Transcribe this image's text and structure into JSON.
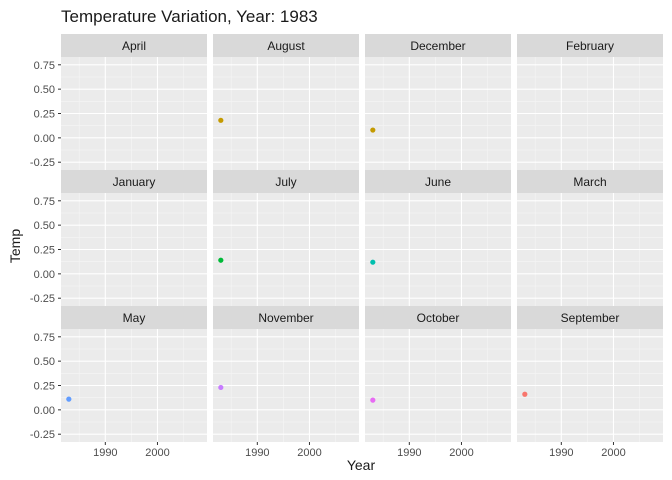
{
  "chart_data": {
    "type": "scatter",
    "title": "Temperature Variation, Year: 1983",
    "xlabel": "Year",
    "ylabel": "Temp",
    "facet_by": "Month",
    "facet_layout": "3x4 grid",
    "xlim": [
      1981.5,
      2009.5
    ],
    "ylim": [
      -0.33,
      0.83
    ],
    "xticks": [
      1990,
      2000
    ],
    "yticks": [
      -0.25,
      0.0,
      0.25,
      0.5,
      0.75
    ],
    "ytick_labels": [
      "-0.25",
      "0.00",
      "0.25",
      "0.50",
      "0.75"
    ],
    "grid": true,
    "legend": "none",
    "panels": [
      {
        "label": "April",
        "points": []
      },
      {
        "label": "August",
        "points": [
          {
            "x": 1983,
            "y": 0.18,
            "color": "#C49A00"
          }
        ]
      },
      {
        "label": "December",
        "points": [
          {
            "x": 1983,
            "y": 0.08,
            "color": "#C49A00"
          }
        ]
      },
      {
        "label": "February",
        "points": []
      },
      {
        "label": "January",
        "points": []
      },
      {
        "label": "July",
        "points": [
          {
            "x": 1983,
            "y": 0.14,
            "color": "#00BA38"
          }
        ]
      },
      {
        "label": "June",
        "points": [
          {
            "x": 1983,
            "y": 0.12,
            "color": "#00BFAE"
          }
        ]
      },
      {
        "label": "March",
        "points": []
      },
      {
        "label": "May",
        "points": [
          {
            "x": 1983,
            "y": 0.11,
            "color": "#619CFF"
          }
        ]
      },
      {
        "label": "November",
        "points": [
          {
            "x": 1983,
            "y": 0.23,
            "color": "#C77CFF"
          }
        ]
      },
      {
        "label": "October",
        "points": [
          {
            "x": 1983,
            "y": 0.1,
            "color": "#E76BF3"
          }
        ]
      },
      {
        "label": "September",
        "points": [
          {
            "x": 1983,
            "y": 0.16,
            "color": "#F8766D"
          }
        ]
      }
    ]
  }
}
